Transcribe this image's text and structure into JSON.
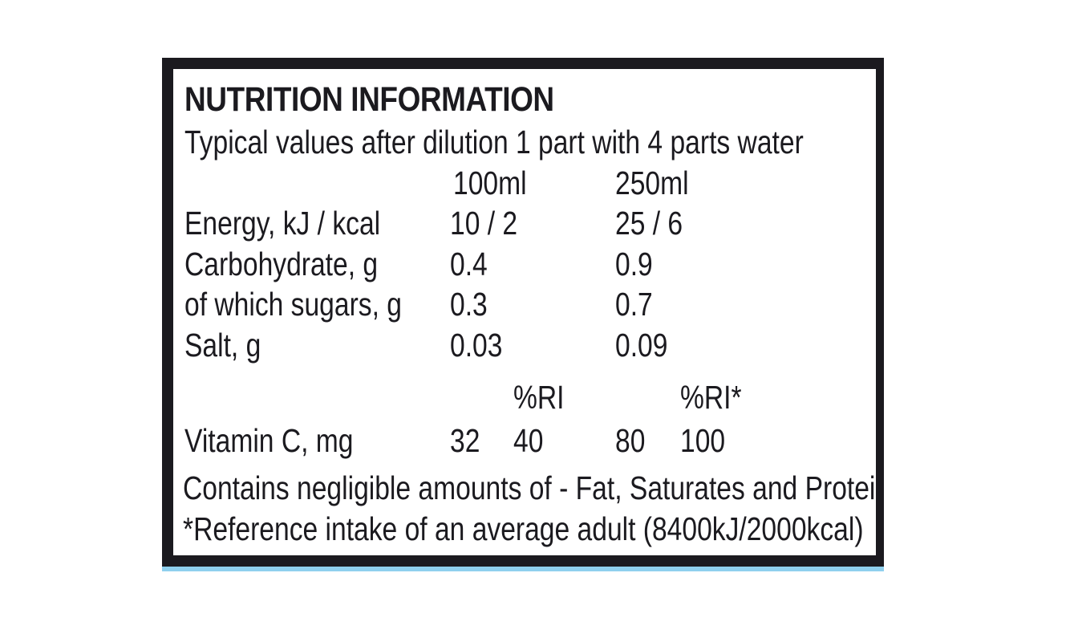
{
  "label": {
    "title": "NUTRITION INFORMATION",
    "subtitle": "Typical values after dilution 1 part with 4 parts water",
    "columns": {
      "per_100": "100ml",
      "per_250": "250ml"
    },
    "rows": [
      {
        "name": "Energy, kJ / kcal",
        "v100": "10 / 2",
        "v250": "25 / 6"
      },
      {
        "name": "Carbohydrate, g",
        "v100": "0.4",
        "v250": "0.9"
      },
      {
        "name": "of which sugars, g",
        "v100": "0.3",
        "v250": "0.7"
      },
      {
        "name": "Salt, g",
        "v100": "0.03",
        "v250": "0.09"
      }
    ],
    "ri_headers": {
      "ri_100": "%RI",
      "ri_250": "%RI*"
    },
    "vitamin": {
      "name": "Vitamin C, mg",
      "v100": "32",
      "ri100": "40",
      "v250": "80",
      "ri250": "100"
    },
    "footnotes": [
      "Contains negligible amounts of - Fat, Saturates and Protein.",
      "*Reference intake of an average adult (8400kJ/2000kcal)"
    ]
  },
  "colors": {
    "ink": "#1b1a1f",
    "background": "#ffffff",
    "border": "#1b1a1f",
    "accent_strip": "#8fd0ee"
  }
}
